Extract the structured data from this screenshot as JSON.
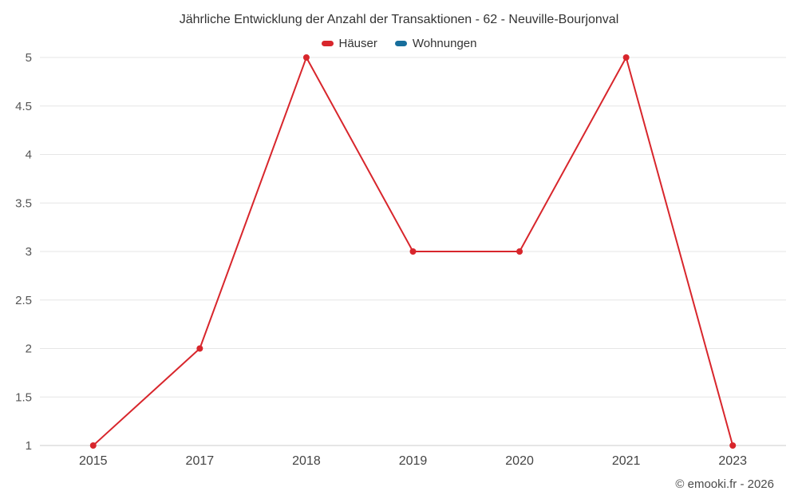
{
  "title": "Jährliche Entwicklung der Anzahl der Transaktionen - 62 - Neuville-Bourjonval",
  "footer": "© emooki.fr - 2026",
  "colors": {
    "houses": "#d8262c",
    "apartments": "#176e9c",
    "grid": "#e6e6e6",
    "axis_line": "#cccccc",
    "axis_text": "#555555",
    "title_text": "#333333"
  },
  "legend": [
    {
      "label": "Häuser",
      "color": "#d8262c"
    },
    {
      "label": "Wohnungen",
      "color": "#176e9c"
    }
  ],
  "chart_data": {
    "type": "line",
    "title": "Jährliche Entwicklung der Anzahl der Transaktionen - 62 - Neuville-Bourjonval",
    "categories": [
      "2015",
      "2017",
      "2018",
      "2019",
      "2020",
      "2021",
      "2023"
    ],
    "series": [
      {
        "name": "Häuser",
        "color": "#d8262c",
        "values": [
          1,
          2,
          5,
          3,
          3,
          5,
          1
        ]
      },
      {
        "name": "Wohnungen",
        "color": "#176e9c",
        "values": []
      }
    ],
    "xlabel": "",
    "ylabel": "",
    "ylim": [
      1,
      5
    ],
    "ytick_step": 0.5,
    "yticks": [
      1,
      1.5,
      2,
      2.5,
      3,
      3.5,
      4,
      4.5,
      5
    ],
    "grid": true,
    "legend_position": "top"
  }
}
